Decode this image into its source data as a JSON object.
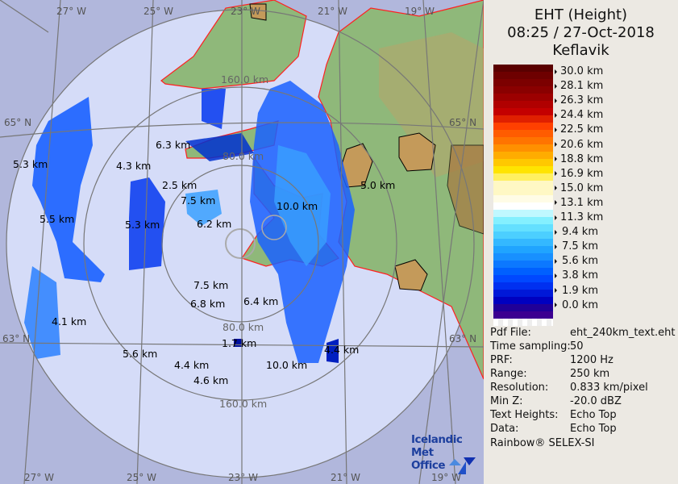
{
  "header": {
    "product": "EHT (Height)",
    "datetime": "08:25 / 27-Oct-2018",
    "site": "Keflavik"
  },
  "legend": {
    "labels": [
      "30.0 km",
      "28.1 km",
      "26.3 km",
      "24.4 km",
      "22.5 km",
      "20.6 km",
      "18.8 km",
      "16.9 km",
      "15.0 km",
      "13.1 km",
      "11.3 km",
      "9.4 km",
      "7.5 km",
      "5.6 km",
      "3.8 km",
      "1.9 km",
      "0.0 km"
    ],
    "colors": [
      "#5a0000",
      "#6e0000",
      "#7c0000",
      "#8a0000",
      "#9c0000",
      "#b00000",
      "#c40000",
      "#e02000",
      "#ff4000",
      "#ff5c00",
      "#ff7400",
      "#ff9000",
      "#ffac00",
      "#ffc800",
      "#ffe400",
      "#fff060",
      "#fff8c4",
      "#fff8c4",
      "#fffce6",
      "#ffffff",
      "#c0f8ff",
      "#84f0ff",
      "#64e0ff",
      "#4ccfff",
      "#34b8ff",
      "#20a4ff",
      "#1890ff",
      "#0c78ff",
      "#0060ff",
      "#0048ff",
      "#0030f0",
      "#0018d8",
      "#0000c0",
      "#200098",
      "#3c0090"
    ]
  },
  "info": [
    {
      "key": "Pdf File:",
      "value": "eht_240km_text.eht"
    },
    {
      "key": "Time sampling:",
      "value": "50"
    },
    {
      "key": "PRF:",
      "value": "1200 Hz"
    },
    {
      "key": "Range:",
      "value": "250 km"
    },
    {
      "key": "Resolution:",
      "value": "0.833 km/pixel"
    },
    {
      "key": "Min Z:",
      "value": "-20.0 dBZ"
    },
    {
      "key": "Text Heights:",
      "value": "Echo Top"
    },
    {
      "key": "Data:",
      "value": "Echo Top"
    }
  ],
  "credit": "Rainbow® SELEX-SI",
  "logo": {
    "line1": "Icelandic Met",
    "line2": "Office"
  },
  "map": {
    "rings": [
      "80.0 km",
      "160.0 km"
    ],
    "grid_labels": {
      "top": [
        "27° W",
        "25° W",
        "23° W",
        "21° W",
        "19° W"
      ],
      "bottom": [
        "27° W",
        "25° W",
        "23° W",
        "21° W",
        "19° W"
      ],
      "lat_65": "65° N",
      "lat_63": "63° N"
    },
    "echo_tops": [
      "6.3 km",
      "5.3 km",
      "4.3 km",
      "2.5 km",
      "7.5 km",
      "5.0 km",
      "10.0 km",
      "5.5 km",
      "5.3 km",
      "6.2 km",
      "7.5 km",
      "6.8 km",
      "6.4 km",
      "4.1 km",
      "1.7 km",
      "4.4 km",
      "5.6 km",
      "4.4 km",
      "10.0 km",
      "4.6 km"
    ],
    "colors": {
      "outside": "#b1b7dc",
      "inside": "#d5dcf8",
      "coast": "#ff2020",
      "land": "#8fb87a"
    }
  }
}
